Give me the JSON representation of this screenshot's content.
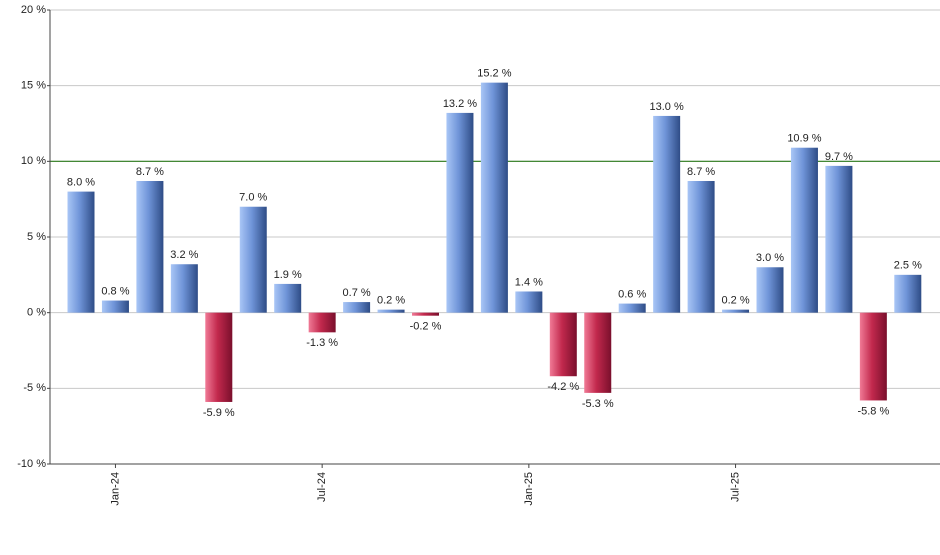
{
  "chart_data": {
    "type": "bar",
    "categories": [
      null,
      "Jan-24",
      null,
      null,
      null,
      null,
      null,
      "Jul-24",
      null,
      null,
      null,
      null,
      null,
      "Jan-25",
      null,
      null,
      null,
      null,
      null,
      "Jul-25",
      null,
      null,
      null,
      null,
      null
    ],
    "values": [
      8.0,
      0.8,
      8.7,
      3.2,
      -5.9,
      7.0,
      1.9,
      -1.3,
      0.7,
      0.2,
      -0.2,
      13.2,
      15.2,
      1.4,
      -4.2,
      -5.3,
      0.6,
      13.0,
      8.7,
      0.2,
      3.0,
      10.9,
      9.7,
      -5.8,
      2.5
    ],
    "value_labels": [
      "8.0 %",
      "0.8 %",
      "8.7 %",
      "3.2 %",
      "-5.9 %",
      "7.0 %",
      "1.9 %",
      "-1.3 %",
      "0.7 %",
      "0.2 %",
      "-0.2 %",
      "13.2 %",
      "15.2 %",
      "1.4 %",
      "-4.2 %",
      "-5.3 %",
      "0.6 %",
      "13.0 %",
      "8.7 %",
      "0.2 %",
      "3.0 %",
      "10.9 %",
      "9.7 %",
      "-5.8 %",
      "2.5 %"
    ],
    "positive_color": "#6f94d8",
    "negative_color": "#c2294d",
    "reference_line": 10,
    "reference_color": "#2e7d1e",
    "ylim": [
      -10,
      20
    ],
    "yticks": [
      {
        "value": -10,
        "label": "-10 %"
      },
      {
        "value": -5,
        "label": "-5 %"
      },
      {
        "value": 0,
        "label": "0 %"
      },
      {
        "value": 5,
        "label": "5 %"
      },
      {
        "value": 10,
        "label": "10 %"
      },
      {
        "value": 15,
        "label": "15 %"
      },
      {
        "value": 20,
        "label": "20 %"
      }
    ],
    "grid": true
  }
}
